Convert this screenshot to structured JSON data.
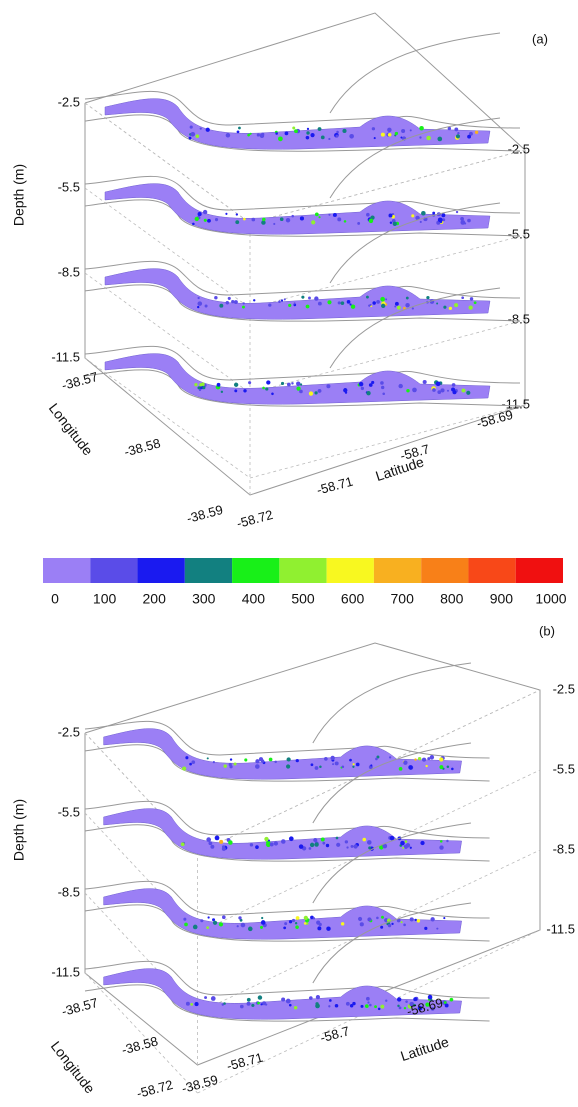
{
  "panels": [
    {
      "label": "(a)",
      "z_label": "Depth (m)",
      "depth_ticks": [
        -2.5,
        -5.5,
        -8.5,
        -11.5
      ],
      "longitude_label": "Longitude",
      "longitude_ticks": [
        -38.57,
        -38.58,
        -38.59
      ],
      "latitude_label": "Latitude",
      "latitude_ticks": [
        -58.72,
        -58.71,
        -58.7,
        -58.69
      ]
    },
    {
      "label": "(b)",
      "z_label": "Depth (m)",
      "depth_ticks": [
        -2.5,
        -5.5,
        -8.5,
        -11.5
      ],
      "longitude_label": "Longitude",
      "longitude_ticks": [
        -38.57,
        -38.58,
        -38.59
      ],
      "latitude_label": "Latitude",
      "latitude_ticks": [
        -58.72,
        -58.71,
        -58.7,
        -58.69
      ]
    }
  ],
  "colorbar": {
    "colors": [
      "#9b7ff5",
      "#5a4ce8",
      "#1a1af0",
      "#128080",
      "#18f018",
      "#90f030",
      "#f8f820",
      "#f8b020",
      "#f88018",
      "#f84818",
      "#f01010"
    ],
    "ticks": [
      0,
      100,
      200,
      300,
      400,
      500,
      600,
      700,
      800,
      900,
      1000
    ]
  }
}
